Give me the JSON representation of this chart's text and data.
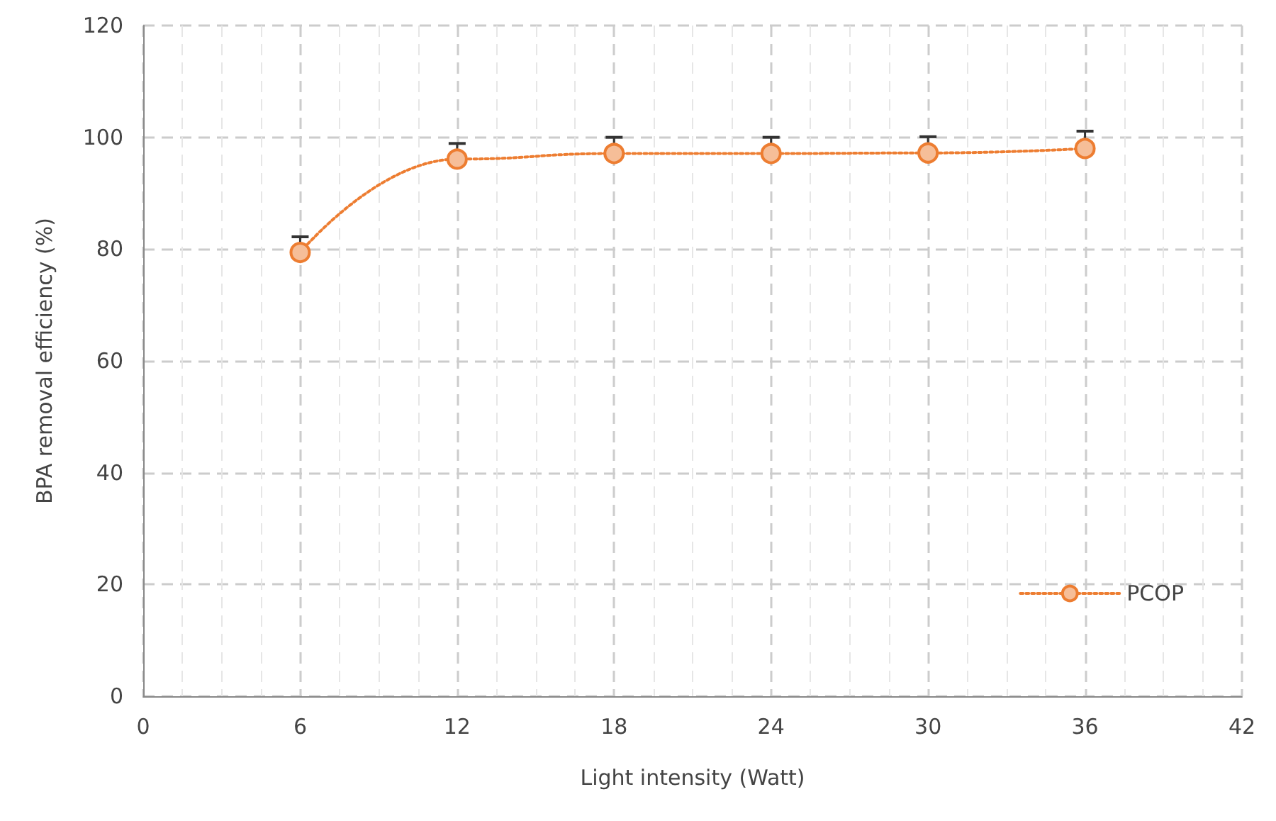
{
  "chart_data": {
    "type": "line",
    "xlabel": "Light intensity (Watt)",
    "ylabel": "BPA removal efficiency (%)",
    "x": [
      6,
      12,
      18,
      24,
      30,
      36
    ],
    "series": [
      {
        "name": "PCOP",
        "color": "#ed7d31",
        "values": [
          79.4,
          96.1,
          97.1,
          97.1,
          97.2,
          98.0
        ],
        "errors": [
          [
            79.4,
            82.2
          ],
          [
            96.1,
            98.9
          ],
          [
            97.1,
            100.0
          ],
          [
            97.1,
            100.0
          ],
          [
            97.2,
            100.1
          ],
          [
            98.0,
            101.1
          ]
        ]
      }
    ],
    "xlim": [
      0,
      42
    ],
    "xticks": [
      0,
      6,
      12,
      18,
      24,
      30,
      36,
      42
    ],
    "ylim": [
      0,
      120
    ],
    "yticks": [
      0,
      20,
      40,
      60,
      80,
      100,
      120
    ],
    "grid": true,
    "legend": "bottom right",
    "marker": "circle",
    "line_style": "dotted"
  }
}
